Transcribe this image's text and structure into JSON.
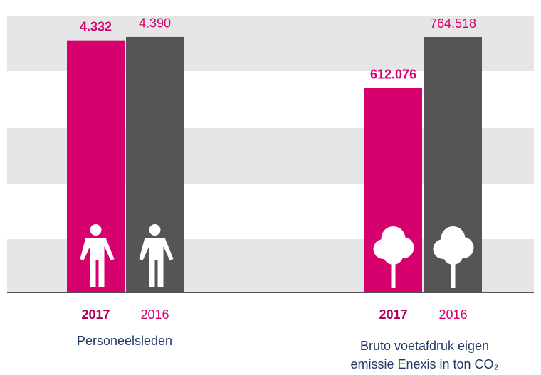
{
  "chart_data": [
    {
      "type": "bar",
      "title": "Personeelsleden",
      "categories": [
        "2017",
        "2016"
      ],
      "values": [
        4332,
        4390
      ],
      "value_labels": [
        "4.332",
        "4.390"
      ],
      "colors": [
        "#d6006e",
        "#555555"
      ],
      "ylim": [
        0,
        4780
      ]
    },
    {
      "type": "bar",
      "title": "Bruto voetafdruk eigen emissie Enexis in ton CO₂",
      "categories": [
        "2017",
        "2016"
      ],
      "values": [
        612076,
        764518
      ],
      "value_labels": [
        "612.076",
        "764.518"
      ],
      "colors": [
        "#d6006e",
        "#555555"
      ],
      "ylim": [
        0,
        832700
      ]
    }
  ]
}
